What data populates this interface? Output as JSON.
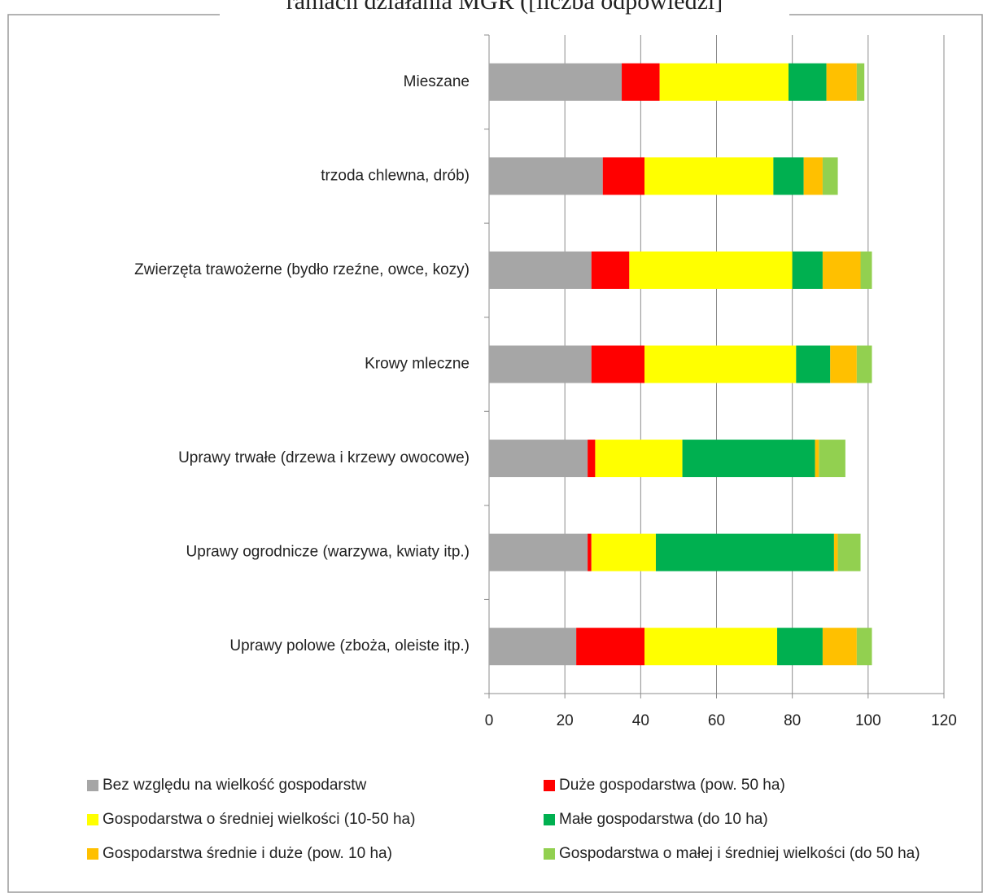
{
  "chart_data": {
    "type": "stacked-bar-horizontal",
    "title": "ramach działania MGR ([liczba odpowiedzi]",
    "categories": [
      "Mieszane",
      "trzoda chlewna, drób)",
      "Zwierzęta trawożerne (bydło rzeźne, owce, kozy)",
      "Krowy mleczne",
      "Uprawy trwałe (drzewa i krzewy owocowe)",
      "Uprawy ogrodnicze (warzywa, kwiaty itp.)",
      "Uprawy polowe (zboża, oleiste itp.)"
    ],
    "series": [
      {
        "name": "Bez względu na wielkość gospodarstw",
        "color": "#a6a6a6",
        "values": [
          35,
          30,
          27,
          27,
          26,
          26,
          23
        ]
      },
      {
        "name": "Duże gospodarstwa (pow. 50 ha)",
        "color": "#ff0000",
        "values": [
          10,
          11,
          10,
          14,
          2,
          1,
          18
        ]
      },
      {
        "name": "Gospodarstwa o średniej wielkości (10-50 ha)",
        "color": "#ffff00",
        "values": [
          34,
          34,
          43,
          40,
          23,
          17,
          35
        ]
      },
      {
        "name": "Małe gospodarstwa (do 10 ha)",
        "color": "#00b050",
        "values": [
          10,
          8,
          8,
          9,
          35,
          47,
          12
        ]
      },
      {
        "name": "Gospodarstwa średnie i duże (pow. 10 ha)",
        "color": "#ffc000",
        "values": [
          8,
          5,
          10,
          7,
          1,
          1,
          9
        ]
      },
      {
        "name": "Gospodarstwa o małej i średniej wielkości (do 50 ha)",
        "color": "#92d050",
        "values": [
          2,
          4,
          3,
          4,
          7,
          6,
          4
        ]
      }
    ],
    "xlim": [
      0,
      120
    ],
    "xticks": [
      0,
      20,
      40,
      60,
      80,
      100,
      120
    ],
    "grid": true,
    "legend": "bottom"
  }
}
